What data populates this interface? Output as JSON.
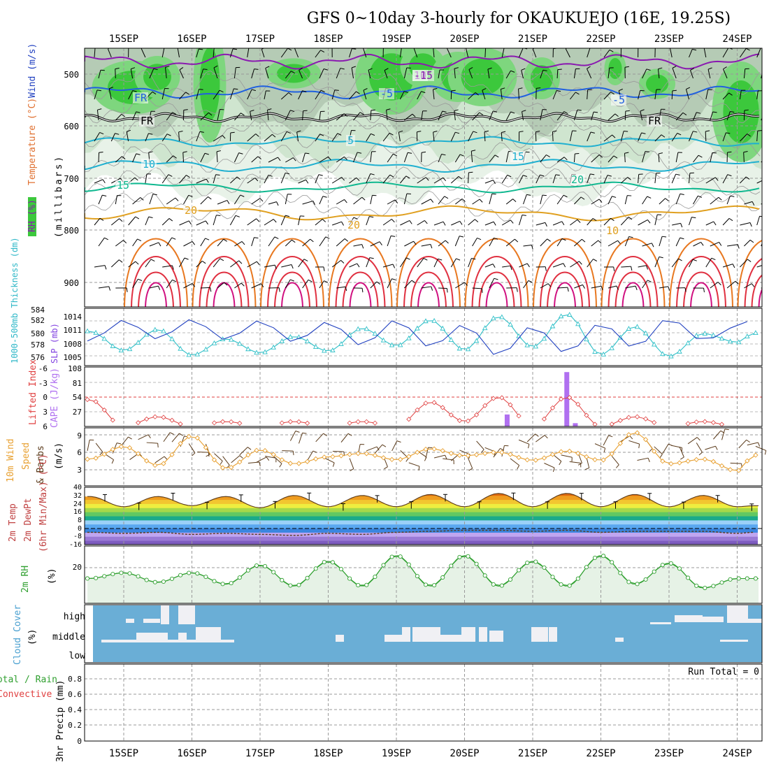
{
  "title": "GFS 0~10day 3-hourly for OKAUKUEJO (16E, 19.25S)",
  "date_labels": [
    "15SEP",
    "16SEP",
    "17SEP",
    "18SEP",
    "19SEP",
    "20SEP",
    "21SEP",
    "22SEP",
    "23SEP",
    "24SEP"
  ],
  "colors": {
    "rh_green": "#3cc83c",
    "rh_light": "#dfeedf",
    "wind_purple": "#8a1ab0",
    "wind_blue": "#2060e0",
    "temp_cyan": "#20b0d0",
    "temp_teal": "#10b890",
    "temp_gold": "#e0a020",
    "temp_orange": "#e87820",
    "temp_red": "#e03040",
    "temp_magenta": "#d01080",
    "slp_line": "#2040c0",
    "thick_line": "#30c0c8",
    "lifted": "#e04040",
    "cape_bar": "#b070f0",
    "wind10m": "#e8a030",
    "rh2m": "#30a030",
    "cloud_blue": "#6aaed6",
    "cloud_white": "#f0f0f4"
  },
  "panels": {
    "profile": {
      "y_label_a": "RH (%)",
      "y_label_b": "Temperature (°C)",
      "y_label_c": "Wind (m/s)",
      "y_label_d": "(millibars)",
      "pressure_ticks": [
        "500",
        "600",
        "700",
        "800",
        "900"
      ],
      "contour_labels": [
        "10",
        "-5",
        "-5",
        "FR",
        "FR",
        "5",
        "10",
        "15",
        "15",
        "20",
        "20",
        "20",
        "10",
        "-15",
        "FR"
      ]
    },
    "slp": {
      "y_label_left": "1000-500mb Thickness (dm)",
      "y_label_right": "SLP (mb)",
      "left_ticks": [
        "584",
        "582",
        "580",
        "578",
        "576"
      ],
      "right_ticks": [
        "1014",
        "1011",
        "1008",
        "1005"
      ]
    },
    "cape": {
      "y_label_left": "Lifted Index",
      "y_label_right": "CAPE (J/kg)",
      "left_ticks": [
        "-6",
        "-3",
        "0",
        "3",
        "6"
      ],
      "right_ticks": [
        "108",
        "81",
        "54",
        "27"
      ]
    },
    "wind": {
      "y_label_a": "10m Wind",
      "y_label_b": "Speed",
      "y_label_c": "& Barbs",
      "y_label_d": "(m/s)",
      "ticks": [
        "9",
        "6",
        "3"
      ]
    },
    "temp": {
      "y_label_a": "2m Temp",
      "y_label_b": "2m DewPt",
      "y_label_c": "(6hr Min/Max) (°C)",
      "ticks": [
        "40",
        "32",
        "24",
        "16",
        "8",
        "0",
        "-8",
        "-16"
      ]
    },
    "rh": {
      "y_label_a": "2m RH",
      "y_label_b": "(%)",
      "ticks": [
        "20"
      ]
    },
    "cloud": {
      "y_label_a": "Cloud Cover",
      "y_label_b": "(%)",
      "levels": [
        "high",
        "middle",
        "low"
      ]
    },
    "precip": {
      "y_label_a": "Total / Rain",
      "y_label_b": "Convective",
      "y_label_c": "3hr Precip (mm)",
      "ticks": [
        "0.8",
        "0.6",
        "0.4",
        "0.2",
        "0"
      ],
      "run_total": "Run Total = 0"
    }
  },
  "chart_data": [
    {
      "type": "line",
      "name": "1000-500mb Thickness (dm)",
      "x": [
        "14SEP 12Z",
        "15SEP 00Z",
        "15SEP 12Z",
        "16SEP 00Z",
        "16SEP 12Z",
        "17SEP 00Z",
        "17SEP 12Z",
        "18SEP 00Z",
        "18SEP 12Z",
        "19SEP 00Z",
        "19SEP 12Z",
        "20SEP 00Z",
        "20SEP 12Z",
        "21SEP 00Z",
        "21SEP 12Z",
        "22SEP 00Z",
        "22SEP 12Z",
        "23SEP 00Z",
        "23SEP 12Z",
        "24SEP 00Z",
        "24SEP 06Z"
      ],
      "values": [
        580.5,
        577.2,
        580.8,
        576.4,
        579.2,
        576.8,
        579.6,
        577.1,
        581.0,
        578.0,
        582.4,
        577.3,
        583.0,
        577.8,
        583.4,
        576.5,
        581.3,
        576.2,
        580.1,
        578.6,
        580.2
      ],
      "ylim": [
        575,
        584
      ]
    },
    {
      "type": "line",
      "name": "SLP (mb)",
      "x": [
        "14SEP 12Z",
        "15SEP 00Z",
        "15SEP 12Z",
        "16SEP 00Z",
        "16SEP 12Z",
        "17SEP 00Z",
        "17SEP 12Z",
        "18SEP 00Z",
        "18SEP 12Z",
        "19SEP 00Z",
        "19SEP 12Z",
        "20SEP 00Z",
        "20SEP 12Z",
        "21SEP 00Z",
        "21SEP 12Z",
        "22SEP 00Z",
        "22SEP 12Z",
        "23SEP 00Z",
        "23SEP 12Z",
        "24SEP 00Z",
        "24SEP 06Z"
      ],
      "values": [
        1008.5,
        1013.6,
        1009.0,
        1013.8,
        1008.8,
        1013.5,
        1008.3,
        1013.2,
        1007.4,
        1013.7,
        1007.0,
        1012.6,
        1004.8,
        1012.2,
        1005.5,
        1012.9,
        1006.8,
        1014.1,
        1008.6,
        1012.0,
        1014.0
      ],
      "ylim": [
        1003,
        1016
      ]
    },
    {
      "type": "line",
      "name": "Lifted Index",
      "x": [
        "14SEP 12Z",
        "15SEP 00Z",
        "15SEP 12Z",
        "16SEP 00Z",
        "16SEP 12Z",
        "17SEP 00Z",
        "17SEP 12Z",
        "18SEP 00Z",
        "18SEP 12Z",
        "19SEP 00Z",
        "19SEP 12Z",
        "20SEP 00Z",
        "20SEP 12Z",
        "21SEP 00Z",
        "21SEP 12Z",
        "22SEP 00Z",
        "22SEP 12Z",
        "23SEP 00Z",
        "23SEP 12Z",
        "24SEP 00Z",
        "24SEP 06Z"
      ],
      "values": [
        0.5,
        6,
        4,
        6,
        5,
        6,
        5,
        6,
        5,
        6,
        1,
        5,
        0,
        6,
        0,
        6,
        4,
        6,
        5,
        6,
        6
      ],
      "ylim": [
        -6,
        6
      ]
    },
    {
      "type": "bar",
      "name": "CAPE (J/kg)",
      "categories": [
        "20SEP 15Z",
        "21SEP 12Z",
        "21SEP 15Z"
      ],
      "values": [
        22,
        100,
        6
      ],
      "ylim": [
        0,
        108
      ]
    },
    {
      "type": "line",
      "name": "10m Wind Speed (m/s)",
      "x": [
        "14SEP 12Z",
        "15SEP 00Z",
        "15SEP 12Z",
        "16SEP 00Z",
        "16SEP 12Z",
        "17SEP 00Z",
        "17SEP 12Z",
        "18SEP 00Z",
        "18SEP 12Z",
        "19SEP 00Z",
        "19SEP 12Z",
        "20SEP 00Z",
        "20SEP 12Z",
        "21SEP 00Z",
        "21SEP 12Z",
        "22SEP 00Z",
        "22SEP 12Z",
        "23SEP 00Z",
        "23SEP 12Z",
        "24SEP 00Z",
        "24SEP 06Z"
      ],
      "values": [
        4.6,
        6.8,
        3.5,
        8.6,
        3.0,
        6.2,
        3.8,
        5.0,
        5.6,
        4.5,
        6.4,
        5.2,
        5.8,
        4.4,
        6.0,
        4.4,
        9.2,
        3.8,
        4.6,
        2.6,
        5.3
      ],
      "ylim": [
        0,
        10
      ]
    },
    {
      "type": "line",
      "name": "2m Temp (°C)",
      "x": [
        "14SEP 12Z",
        "15SEP 00Z",
        "15SEP 12Z",
        "16SEP 00Z",
        "16SEP 12Z",
        "17SEP 00Z",
        "17SEP 12Z",
        "18SEP 00Z",
        "18SEP 12Z",
        "19SEP 00Z",
        "19SEP 12Z",
        "20SEP 00Z",
        "20SEP 12Z",
        "21SEP 00Z",
        "21SEP 12Z",
        "22SEP 00Z",
        "22SEP 12Z",
        "23SEP 00Z",
        "23SEP 12Z",
        "24SEP 00Z",
        "24SEP 06Z"
      ],
      "values": [
        31,
        21,
        31,
        22,
        31,
        20,
        32,
        21,
        32,
        21,
        33,
        21,
        34,
        21,
        34,
        21,
        33,
        21,
        32,
        21,
        22
      ],
      "ylim": [
        -16,
        40
      ]
    },
    {
      "type": "line",
      "name": "2m DewPt (°C)",
      "x": [
        "14SEP 12Z",
        "15SEP 00Z",
        "15SEP 12Z",
        "16SEP 00Z",
        "16SEP 12Z",
        "17SEP 00Z",
        "17SEP 12Z",
        "18SEP 00Z",
        "18SEP 12Z",
        "19SEP 00Z",
        "19SEP 12Z",
        "20SEP 00Z",
        "20SEP 12Z",
        "21SEP 00Z",
        "21SEP 12Z",
        "22SEP 00Z",
        "22SEP 12Z",
        "23SEP 00Z",
        "23SEP 12Z",
        "24SEP 00Z",
        "24SEP 06Z"
      ],
      "values": [
        -4,
        -5,
        -4,
        -6,
        -5,
        -6,
        -7,
        -5,
        -6,
        -4,
        -3,
        -2,
        -2,
        -3,
        -2,
        -4,
        -3,
        -3,
        -3,
        -5,
        -4
      ],
      "ylim": [
        -16,
        40
      ]
    },
    {
      "type": "line",
      "name": "2m RH (%)",
      "x": [
        "14SEP 12Z",
        "15SEP 00Z",
        "15SEP 12Z",
        "16SEP 00Z",
        "16SEP 12Z",
        "17SEP 00Z",
        "17SEP 12Z",
        "18SEP 00Z",
        "18SEP 12Z",
        "19SEP 00Z",
        "19SEP 12Z",
        "20SEP 00Z",
        "20SEP 12Z",
        "21SEP 00Z",
        "21SEP 12Z",
        "22SEP 00Z",
        "22SEP 12Z",
        "23SEP 00Z",
        "23SEP 12Z",
        "24SEP 00Z",
        "24SEP 06Z"
      ],
      "values": [
        13,
        16,
        11,
        16,
        10,
        20,
        9,
        22,
        9,
        25,
        9,
        25,
        9,
        22,
        9,
        25,
        10,
        21,
        8,
        13,
        13
      ],
      "ylim": [
        0,
        30
      ]
    },
    {
      "type": "bar",
      "name": "3hr Precip (mm)",
      "values": [],
      "ylim": [
        0,
        1
      ]
    }
  ]
}
